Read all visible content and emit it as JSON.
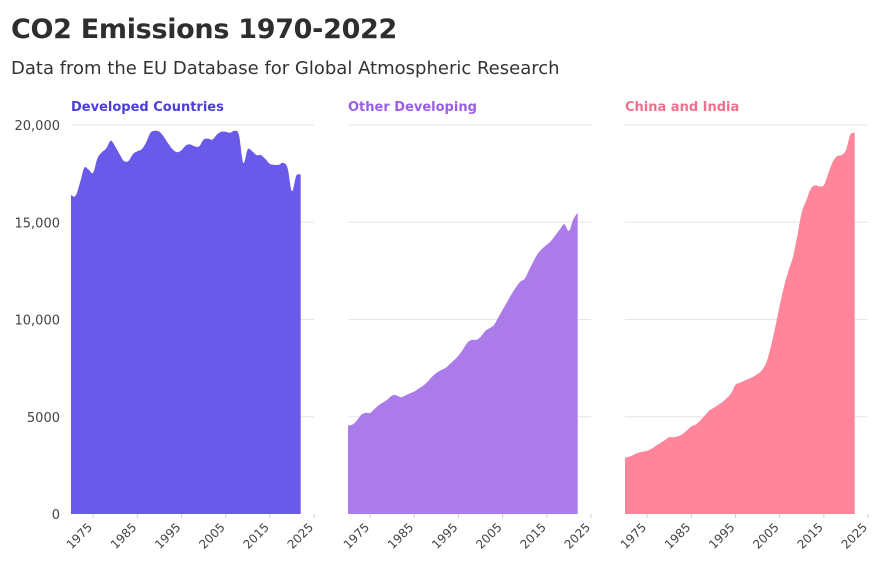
{
  "title": "CO2 Emissions 1970-2022",
  "subtitle": "Data from the EU Database for Global Atmospheric Research",
  "chart_data": {
    "type": "area",
    "x": [
      1970,
      1971,
      1972,
      1973,
      1974,
      1975,
      1976,
      1977,
      1978,
      1979,
      1980,
      1981,
      1982,
      1983,
      1984,
      1985,
      1986,
      1987,
      1988,
      1989,
      1990,
      1991,
      1992,
      1993,
      1994,
      1995,
      1996,
      1997,
      1998,
      1999,
      2000,
      2001,
      2002,
      2003,
      2004,
      2005,
      2006,
      2007,
      2008,
      2009,
      2010,
      2011,
      2012,
      2013,
      2014,
      2015,
      2016,
      2017,
      2018,
      2019,
      2020,
      2021,
      2022
    ],
    "xlim": [
      1970,
      2025
    ],
    "xticks": [
      "1975",
      "1985",
      "1995",
      "2005",
      "2015",
      "2025"
    ],
    "ylim": [
      0,
      20000
    ],
    "yticks": [
      "0",
      "5000",
      "10,000",
      "15,000",
      "20,000"
    ],
    "grid": true,
    "series": [
      {
        "name": "Developed Countries",
        "color": "#6a5ae9",
        "label_color": "#4c3fd9",
        "values": [
          16400,
          16350,
          17000,
          17800,
          17700,
          17550,
          18300,
          18600,
          18800,
          19200,
          18900,
          18500,
          18150,
          18150,
          18500,
          18650,
          18750,
          19100,
          19600,
          19700,
          19650,
          19400,
          19050,
          18750,
          18600,
          18700,
          18950,
          19000,
          18900,
          18900,
          19250,
          19300,
          19250,
          19500,
          19650,
          19650,
          19600,
          19700,
          19500,
          18050,
          18750,
          18650,
          18450,
          18450,
          18250,
          18000,
          17950,
          17950,
          18050,
          17800,
          16600,
          17400,
          17450
        ]
      },
      {
        "name": "Other Developing",
        "color": "#ab7ce9",
        "label_color": "#9b5de5",
        "values": [
          4550,
          4600,
          4800,
          5100,
          5200,
          5200,
          5400,
          5600,
          5750,
          5900,
          6100,
          6100,
          6000,
          6100,
          6200,
          6300,
          6450,
          6600,
          6800,
          7050,
          7250,
          7400,
          7500,
          7700,
          7900,
          8150,
          8450,
          8800,
          8950,
          8950,
          9100,
          9400,
          9550,
          9700,
          10100,
          10500,
          10900,
          11300,
          11650,
          11950,
          12100,
          12550,
          13000,
          13400,
          13650,
          13850,
          14050,
          14350,
          14650,
          14900,
          14550,
          15150,
          15500
        ]
      },
      {
        "name": "China and India",
        "color": "#ff859b",
        "label_color": "#f06f8c",
        "values": [
          2900,
          2950,
          3050,
          3150,
          3200,
          3250,
          3350,
          3500,
          3650,
          3800,
          3950,
          3950,
          4000,
          4100,
          4300,
          4500,
          4600,
          4800,
          5050,
          5300,
          5450,
          5600,
          5750,
          5950,
          6200,
          6650,
          6750,
          6850,
          6950,
          7050,
          7200,
          7400,
          7800,
          8600,
          9600,
          10700,
          11700,
          12500,
          13200,
          14300,
          15500,
          16100,
          16700,
          16900,
          16850,
          16900,
          17500,
          18100,
          18400,
          18450,
          18700,
          19500,
          19600
        ]
      }
    ]
  }
}
